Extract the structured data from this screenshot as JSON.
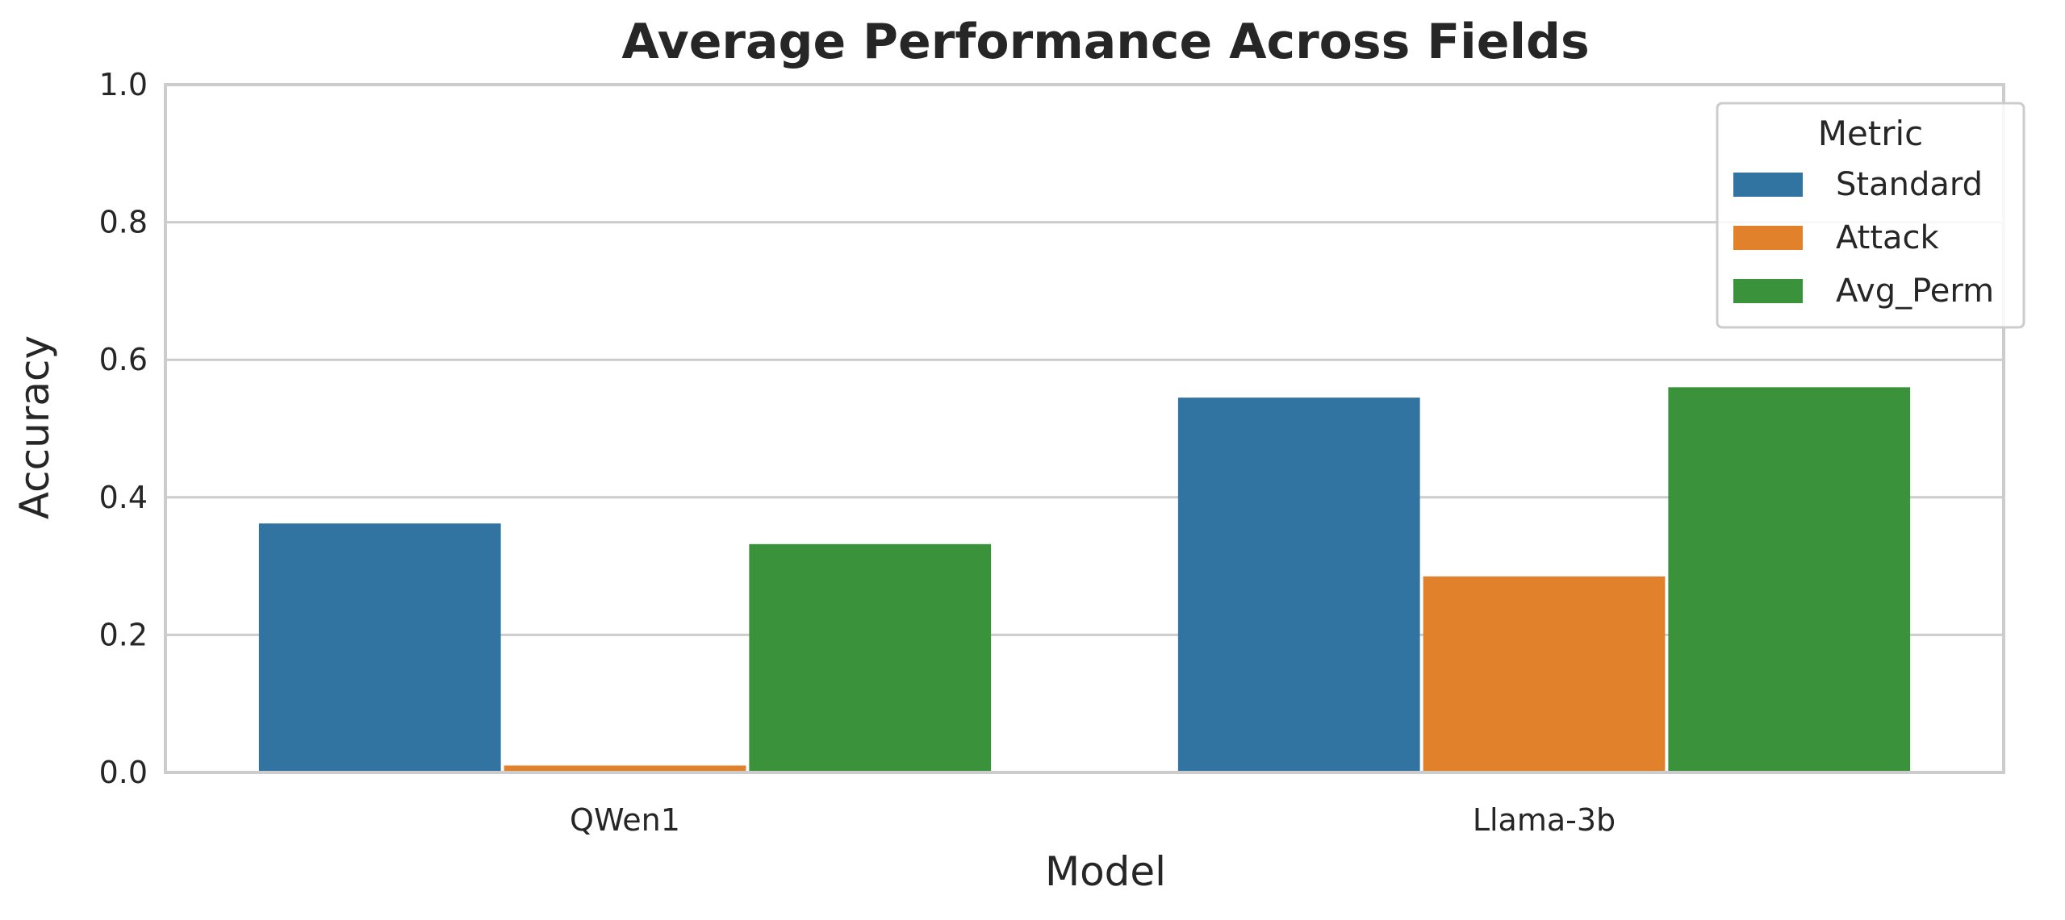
{
  "chart_data": {
    "type": "bar",
    "title": "Average Performance Across Fields",
    "xlabel": "Model",
    "ylabel": "Accuracy",
    "ylim": [
      0,
      1
    ],
    "yticks": [
      "0.0",
      "0.2",
      "0.4",
      "0.6",
      "0.8",
      "1.0"
    ],
    "categories": [
      "QWen1",
      "Llama-3b"
    ],
    "series": [
      {
        "name": "Standard",
        "color": "#3274a1",
        "values": [
          0.362,
          0.545
        ]
      },
      {
        "name": "Attack",
        "color": "#e1812c",
        "values": [
          0.01,
          0.285
        ]
      },
      {
        "name": "Avg_Perm",
        "color": "#3a923a",
        "values": [
          0.332,
          0.56
        ]
      }
    ],
    "legend": {
      "title": "Metric",
      "placement": "top-right"
    },
    "grid": "horizontal"
  }
}
